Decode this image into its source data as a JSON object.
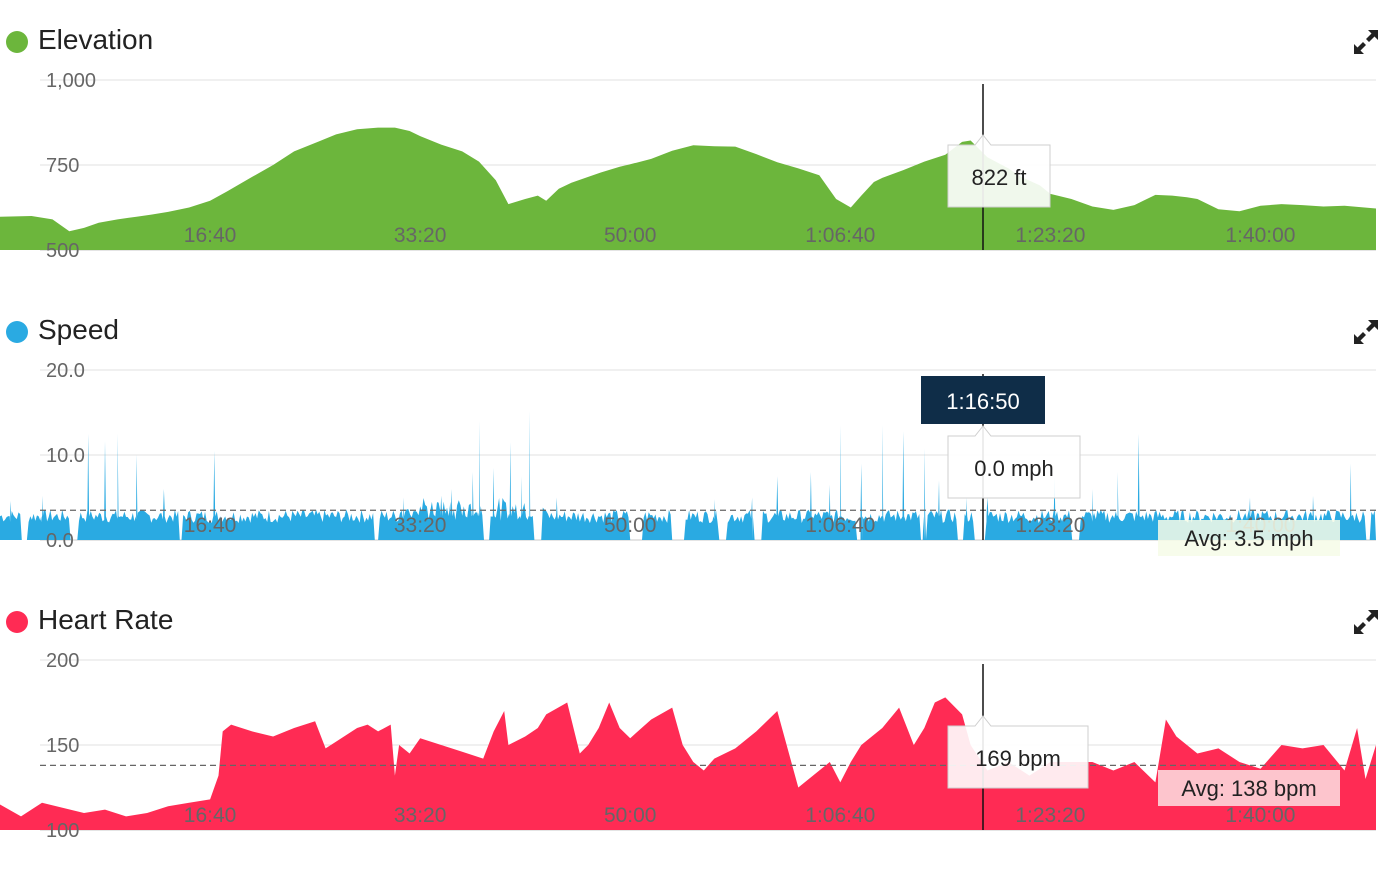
{
  "colors": {
    "elevation": "#6cb63c",
    "speed": "#2aaae2",
    "heart_rate": "#ff2b54",
    "grid": "#e2e2e2",
    "tooltip_time_bg": "#0f2d48"
  },
  "icons": {
    "expand": "expand-arrows-icon"
  },
  "cursor": {
    "time_label": "1:16:50",
    "x_seconds": 4610
  },
  "chart_data": [
    {
      "id": "elevation",
      "type": "area",
      "title": "Elevation",
      "ylim": [
        500,
        1000
      ],
      "yticks": [
        "1,000",
        "750",
        "500"
      ],
      "ytick_values": [
        1000,
        750,
        500
      ],
      "xticks": [
        "16:40",
        "33:20",
        "50:00",
        "1:06:40",
        "1:23:20",
        "1:40:00"
      ],
      "xtick_values": [
        1000,
        2000,
        3000,
        4000,
        5000,
        6000
      ],
      "xlim": [
        0,
        6550
      ],
      "grid": true,
      "tooltip": "822 ft",
      "avg_label": "",
      "x": [
        0,
        150,
        250,
        330,
        400,
        470,
        560,
        650,
        720,
        800,
        900,
        1000,
        1080,
        1200,
        1300,
        1400,
        1520,
        1600,
        1700,
        1800,
        1880,
        1950,
        2000,
        2100,
        2200,
        2280,
        2360,
        2420,
        2500,
        2560,
        2600,
        2660,
        2720,
        2800,
        2860,
        2950,
        3000,
        3100,
        3200,
        3300,
        3400,
        3500,
        3600,
        3700,
        3800,
        3900,
        3980,
        4050,
        4100,
        4160,
        4200,
        4300,
        4400,
        4500,
        4580,
        4620,
        4700,
        4800,
        4860,
        4950,
        5000,
        5100,
        5200,
        5300,
        5400,
        5500,
        5580,
        5650,
        5700,
        5800,
        5900,
        6000,
        6100,
        6200,
        6300,
        6400,
        6550
      ],
      "values": [
        598,
        600,
        590,
        555,
        565,
        580,
        590,
        598,
        604,
        612,
        625,
        645,
        672,
        715,
        750,
        790,
        820,
        840,
        855,
        860,
        860,
        850,
        835,
        810,
        790,
        760,
        705,
        635,
        650,
        660,
        645,
        680,
        698,
        715,
        728,
        745,
        752,
        768,
        792,
        808,
        805,
        804,
        782,
        758,
        740,
        720,
        650,
        625,
        660,
        700,
        712,
        735,
        760,
        780,
        818,
        822,
        773,
        740,
        715,
        690,
        665,
        650,
        628,
        618,
        632,
        662,
        660,
        655,
        650,
        620,
        614,
        630,
        635,
        632,
        628,
        630,
        622
      ]
    },
    {
      "id": "speed",
      "type": "area",
      "title": "Speed",
      "ylim": [
        0,
        20
      ],
      "yticks": [
        "20.0",
        "10.0",
        "0.0"
      ],
      "ytick_values": [
        20,
        10,
        0
      ],
      "xticks": [
        "16:40",
        "33:20",
        "50:00",
        "1:06:40",
        "1:23:20",
        "1:40:00"
      ],
      "xtick_values": [
        1000,
        2000,
        3000,
        4000,
        5000,
        6000
      ],
      "xlim": [
        0,
        6550
      ],
      "grid": true,
      "tooltip": "0.0 mph",
      "avg_value": 3.5,
      "avg_label": "Avg: 3.5 mph",
      "baseline": 2.8,
      "gaps": [
        [
          100,
          130
        ],
        [
          330,
          370
        ],
        [
          850,
          870
        ],
        [
          1780,
          1800
        ],
        [
          2300,
          2330
        ],
        [
          2540,
          2580
        ],
        [
          3000,
          3060
        ],
        [
          3200,
          3260
        ],
        [
          3420,
          3460
        ],
        [
          3580,
          3630
        ],
        [
          4080,
          4110
        ],
        [
          4380,
          4410
        ],
        [
          4560,
          4590
        ],
        [
          4640,
          4690
        ],
        [
          5100,
          5140
        ],
        [
          6500,
          6520
        ]
      ],
      "spikes": [
        [
          50,
          4.6
        ],
        [
          200,
          5.2
        ],
        [
          420,
          12.5
        ],
        [
          500,
          11.6
        ],
        [
          560,
          12.5
        ],
        [
          650,
          10.1
        ],
        [
          780,
          6.0
        ],
        [
          1020,
          10.5
        ],
        [
          1920,
          5.0
        ],
        [
          2100,
          5.2
        ],
        [
          2150,
          6.0
        ],
        [
          2250,
          8.0
        ],
        [
          2280,
          14.0
        ],
        [
          2350,
          8.5
        ],
        [
          2430,
          11.5
        ],
        [
          2480,
          7.5
        ],
        [
          2520,
          15.2
        ],
        [
          2650,
          5.0
        ],
        [
          3400,
          4.8
        ],
        [
          3580,
          5.0
        ],
        [
          3700,
          7.5
        ],
        [
          3860,
          8.0
        ],
        [
          3950,
          6.5
        ],
        [
          4000,
          13.5
        ],
        [
          4100,
          9.0
        ],
        [
          4200,
          13.5
        ],
        [
          4300,
          12.8
        ],
        [
          4400,
          10.8
        ],
        [
          4470,
          7.0
        ],
        [
          4600,
          5.0
        ],
        [
          4700,
          5.0
        ],
        [
          5020,
          7.5
        ],
        [
          5200,
          6.0
        ],
        [
          5320,
          8.0
        ],
        [
          5420,
          12.5
        ],
        [
          5950,
          5.0
        ],
        [
          6250,
          5.2
        ],
        [
          6430,
          9.0
        ]
      ]
    },
    {
      "id": "heart_rate",
      "type": "area",
      "title": "Heart Rate",
      "ylim": [
        100,
        200
      ],
      "yticks": [
        "200",
        "150",
        "100"
      ],
      "ytick_values": [
        200,
        150,
        100
      ],
      "xticks": [
        "16:40",
        "33:20",
        "50:00",
        "1:06:40",
        "1:23:20",
        "1:40:00"
      ],
      "xtick_values": [
        1000,
        2000,
        3000,
        4000,
        5000,
        6000
      ],
      "xlim": [
        0,
        6550
      ],
      "grid": true,
      "tooltip": "169 bpm",
      "avg_value": 138,
      "avg_label": "Avg: 138 bpm",
      "x": [
        0,
        100,
        200,
        300,
        400,
        500,
        600,
        700,
        800,
        900,
        1000,
        1040,
        1060,
        1100,
        1150,
        1200,
        1300,
        1400,
        1500,
        1550,
        1600,
        1700,
        1750,
        1800,
        1860,
        1880,
        1900,
        1950,
        2000,
        2100,
        2200,
        2300,
        2350,
        2400,
        2420,
        2500,
        2560,
        2600,
        2700,
        2760,
        2800,
        2850,
        2900,
        2950,
        3000,
        3100,
        3200,
        3250,
        3300,
        3350,
        3400,
        3500,
        3600,
        3700,
        3800,
        3900,
        3950,
        4000,
        4050,
        4100,
        4200,
        4280,
        4350,
        4400,
        4450,
        4500,
        4580,
        4620,
        4700,
        4800,
        4900,
        5000,
        5100,
        5200,
        5300,
        5400,
        5500,
        5550,
        5600,
        5700,
        5800,
        5900,
        6000,
        6100,
        6200,
        6300,
        6400,
        6460,
        6500,
        6550
      ],
      "values": [
        115,
        108,
        116,
        113,
        110,
        112,
        108,
        110,
        114,
        116,
        118,
        132,
        158,
        162,
        160,
        158,
        155,
        160,
        164,
        148,
        152,
        160,
        162,
        158,
        162,
        132,
        150,
        145,
        154,
        150,
        146,
        142,
        158,
        170,
        150,
        155,
        160,
        168,
        175,
        145,
        150,
        160,
        175,
        160,
        154,
        165,
        172,
        150,
        140,
        135,
        142,
        148,
        158,
        170,
        125,
        135,
        140,
        128,
        140,
        150,
        160,
        172,
        150,
        160,
        175,
        178,
        168,
        150,
        135,
        140,
        132,
        140,
        140,
        140,
        135,
        140,
        128,
        165,
        155,
        145,
        148,
        140,
        136,
        150,
        148,
        150,
        135,
        160,
        130,
        150
      ]
    }
  ]
}
